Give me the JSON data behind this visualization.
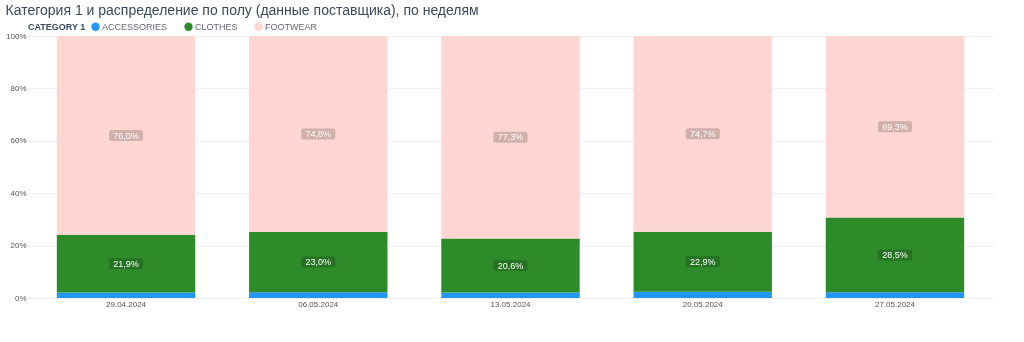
{
  "chart_data": {
    "type": "bar",
    "stacked": true,
    "title": "Категория 1 и распределение по полу (данные поставщика), по неделям",
    "legend_title": "CATEGORY 1",
    "categories": [
      "29.04.2024",
      "06.05.2024",
      "13.05.2024",
      "20.05.2024",
      "27.05.2024"
    ],
    "series": [
      {
        "name": "ACCESSORIES",
        "color": "#2196f3",
        "values": [
          2.1,
          2.2,
          2.1,
          2.4,
          2.2
        ],
        "value_labels": [
          null,
          null,
          null,
          null,
          null
        ]
      },
      {
        "name": "CLOTHES",
        "color": "#2e8b2a",
        "values": [
          21.9,
          23.0,
          20.6,
          22.9,
          28.5
        ],
        "value_labels": [
          "21,9%",
          "23,0%",
          "20,6%",
          "22,9%",
          "28,5%"
        ]
      },
      {
        "name": "FOOTWEAR",
        "color": "#ffd6d1",
        "values": [
          76.0,
          74.8,
          77.3,
          74.7,
          69.3
        ],
        "value_labels": [
          "76,0%",
          "74,8%",
          "77,3%",
          "74,7%",
          "69,3%"
        ]
      }
    ],
    "ylim": [
      0,
      100
    ],
    "yticks": [
      {
        "value": 0,
        "label": "0%"
      },
      {
        "value": 20,
        "label": "20%"
      },
      {
        "value": 40,
        "label": "40%"
      },
      {
        "value": 60,
        "label": "60%"
      },
      {
        "value": 80,
        "label": "80%"
      },
      {
        "value": 100,
        "label": "100%"
      }
    ],
    "grid": "y",
    "legend": "top left"
  }
}
